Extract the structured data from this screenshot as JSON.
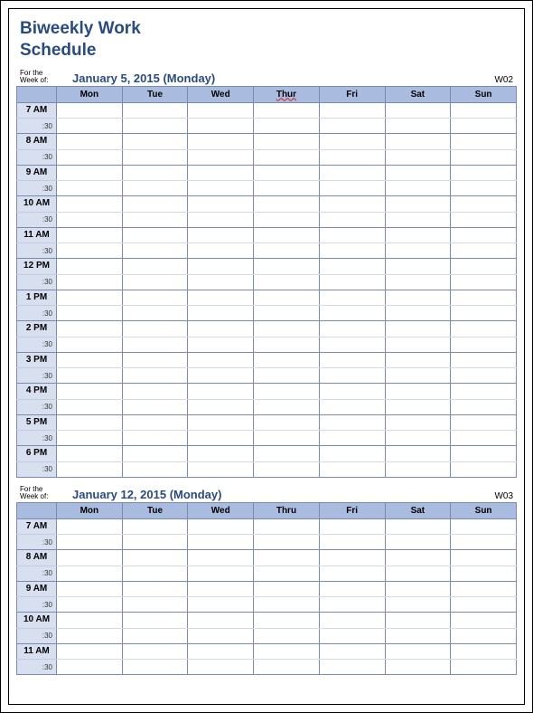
{
  "title_line1": "Biweekly Work",
  "title_line2": "Schedule",
  "colors": {
    "heading": "#2a4c7d",
    "header_bg": "#a9bce0",
    "timecol_bg": "#d8e0f0",
    "border": "#7a8bb0",
    "inner_border": "#d4d9e8",
    "page_bg": "#ffffff"
  },
  "for_the_label": "For the Week of:",
  "half_label": ":30",
  "weeks": [
    {
      "date_label": "January 5, 2015 (Monday)",
      "week_number": "W02",
      "day_headers": [
        "Mon",
        "Tue",
        "Wed",
        "Thur",
        "Fri",
        "Sat",
        "Sun"
      ],
      "spellcheck_day_index": 3,
      "hours": [
        "7 AM",
        "8 AM",
        "9 AM",
        "10 AM",
        "11 AM",
        "12 PM",
        "1 PM",
        "2 PM",
        "3 PM",
        "4 PM",
        "5 PM",
        "6 PM"
      ]
    },
    {
      "date_label": "January 12, 2015 (Monday)",
      "week_number": "W03",
      "day_headers": [
        "Mon",
        "Tue",
        "Wed",
        "Thru",
        "Fri",
        "Sat",
        "Sun"
      ],
      "spellcheck_day_index": -1,
      "hours": [
        "7 AM",
        "8 AM",
        "9 AM",
        "10 AM",
        "11 AM"
      ]
    }
  ]
}
